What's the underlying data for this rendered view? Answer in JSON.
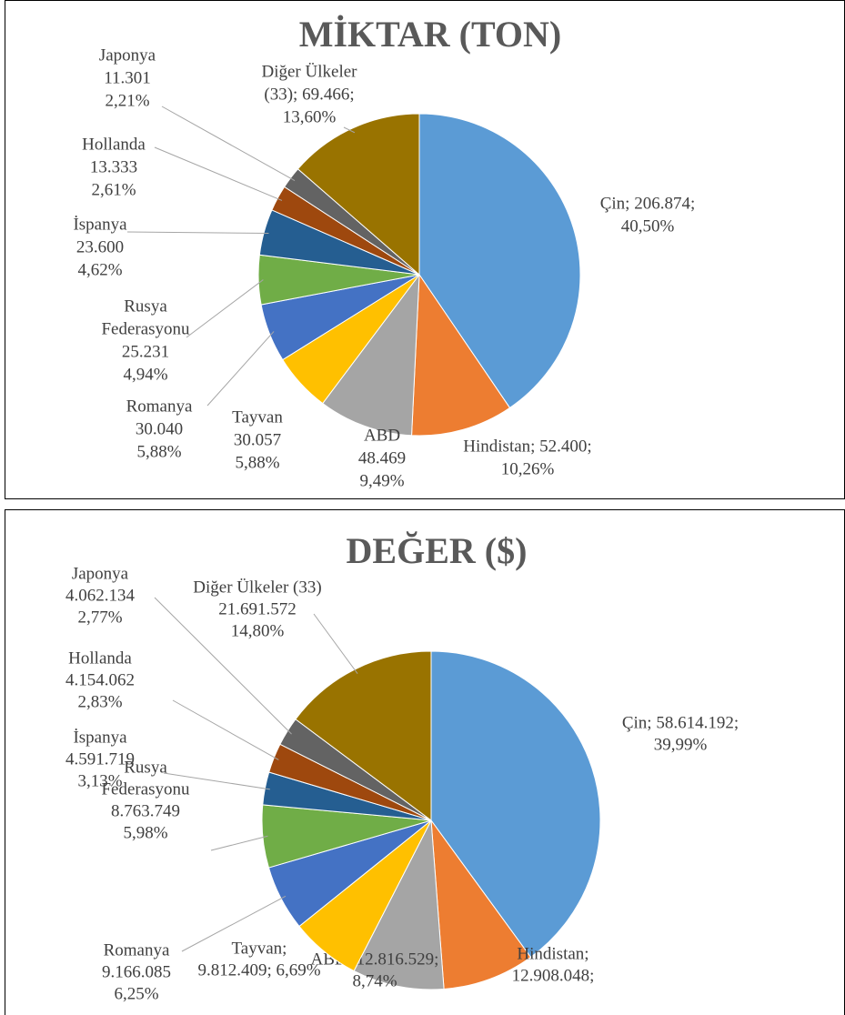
{
  "chart_data": [
    {
      "type": "pie",
      "title": "MİKTAR  (TON)",
      "values": [
        206874,
        52400,
        48469,
        30057,
        30040,
        25231,
        23600,
        13333,
        11301,
        69466
      ],
      "value_labels": [
        [
          "Çin; 206.874;",
          "40,50%"
        ],
        [
          "Hindistan; 52.400;",
          "10,26%"
        ],
        [
          "ABD",
          "48.469",
          "9,49%"
        ],
        [
          "Tayvan",
          "30.057",
          "5,88%"
        ],
        [
          "Romanya",
          "30.040",
          "5,88%"
        ],
        [
          "Rusya",
          "Federasyonu",
          "25.231",
          "4,94%"
        ],
        [
          "İspanya",
          "23.600",
          "4,62%"
        ],
        [
          "Hollanda",
          "13.333",
          "2,61%"
        ],
        [
          "Japonya",
          "11.301",
          "2,21%"
        ],
        [
          "Diğer Ülkeler",
          "(33); 69.466;",
          "13,60%"
        ]
      ],
      "colors": [
        "#5b9bd5",
        "#ed7d31",
        "#a5a5a5",
        "#ffc000",
        "#4472c4",
        "#70ad47",
        "#255e91",
        "#9e480e",
        "#636363",
        "#997300"
      ]
    },
    {
      "type": "pie",
      "title": "DEĞER ($)",
      "values": [
        58614192,
        12908048,
        12816529,
        9812409,
        9166085,
        8763749,
        4591719,
        4154062,
        4062134,
        21691572
      ],
      "value_labels": [
        [
          "Çin; 58.614.192;",
          "39,99%"
        ],
        [
          "Hindistan;",
          "12.908.048;"
        ],
        [
          "ABD; 12.816.529;",
          "8,74%"
        ],
        [
          "Tayvan;",
          "9.812.409; 6,69%"
        ],
        [
          "Romanya",
          "9.166.085",
          "6,25%"
        ],
        [
          "Rusya",
          "Federasyonu",
          "8.763.749",
          "5,98%"
        ],
        [
          "İspanya",
          "4.591.719",
          "3,13%"
        ],
        [
          "Hollanda",
          "4.154.062",
          "2,83%"
        ],
        [
          "Japonya",
          "4.062.134",
          "2,77%"
        ],
        [
          "Diğer Ülkeler (33)",
          "21.691.572",
          "14,80%"
        ]
      ],
      "colors": [
        "#5b9bd5",
        "#ed7d31",
        "#a5a5a5",
        "#ffc000",
        "#4472c4",
        "#70ad47",
        "#255e91",
        "#9e480e",
        "#636363",
        "#997300"
      ]
    }
  ]
}
